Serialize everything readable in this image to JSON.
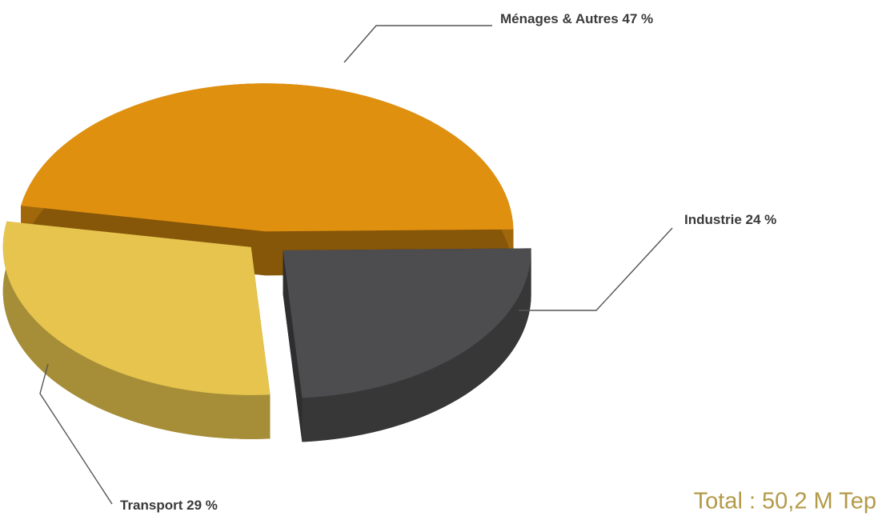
{
  "chart_data": {
    "type": "pie",
    "categories": [
      "Ménages & Autres",
      "Industrie",
      "Transport"
    ],
    "values": [
      47,
      24,
      29
    ],
    "value_labels": [
      "47 %",
      "24 %",
      "29 %"
    ],
    "colors": [
      "#e0900f",
      "#4d4c4e",
      "#e6c44e"
    ],
    "annotation": "Total : 50,2 M Tep"
  }
}
